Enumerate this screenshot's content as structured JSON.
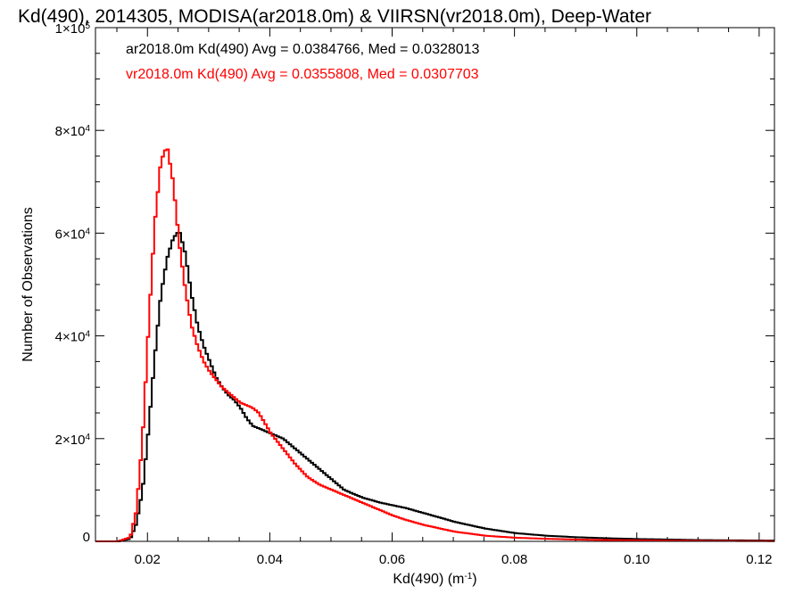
{
  "chart_data": {
    "type": "line",
    "title": "Kd(490), 2014305, MODISA(ar2018.0m) & VIIRSN(vr2018.0m), Deep-Water",
    "xlabel_main": "Kd(490) (m",
    "xlabel_sup": "-1",
    "xlabel_close": ")",
    "ylabel": "Number of Observations",
    "xlim": [
      0.0115,
      0.1225
    ],
    "ylim": [
      0,
      100000
    ],
    "x_ticks": [
      {
        "value": 0.02,
        "label": "0.02"
      },
      {
        "value": 0.04,
        "label": "0.04"
      },
      {
        "value": 0.06,
        "label": "0.06"
      },
      {
        "value": 0.08,
        "label": "0.08"
      },
      {
        "value": 0.1,
        "label": "0.10"
      },
      {
        "value": 0.12,
        "label": "0.12"
      }
    ],
    "y_ticks": [
      {
        "value": 0,
        "mant": "0",
        "exp": ""
      },
      {
        "value": 20000,
        "mant": "2×10",
        "exp": "4"
      },
      {
        "value": 40000,
        "mant": "4×10",
        "exp": "4"
      },
      {
        "value": 60000,
        "mant": "6×10",
        "exp": "4"
      },
      {
        "value": 80000,
        "mant": "8×10",
        "exp": "4"
      },
      {
        "value": 100000,
        "mant": "1×10",
        "exp": "5"
      }
    ],
    "series": [
      {
        "name": "ar2018.0m Kd(490) Avg = 0.0384766, Med = 0.0328013",
        "color": "#000000",
        "x": [
          0.015,
          0.017,
          0.018,
          0.019,
          0.02,
          0.021,
          0.022,
          0.023,
          0.024,
          0.025,
          0.026,
          0.027,
          0.028,
          0.029,
          0.03,
          0.031,
          0.032,
          0.033,
          0.034,
          0.035,
          0.036,
          0.037,
          0.038,
          0.039,
          0.04,
          0.042,
          0.044,
          0.046,
          0.048,
          0.05,
          0.052,
          0.055,
          0.058,
          0.06,
          0.062,
          0.065,
          0.068,
          0.07,
          0.075,
          0.08,
          0.085,
          0.09,
          0.095,
          0.1,
          0.105,
          0.11,
          0.115,
          0.1225
        ],
        "y": [
          0,
          500,
          3500,
          10000,
          22000,
          36000,
          48000,
          55000,
          59000,
          60500,
          56000,
          48000,
          42000,
          38000,
          35000,
          32000,
          30000,
          28500,
          27500,
          26000,
          24000,
          22500,
          22000,
          21500,
          21000,
          20000,
          18000,
          16000,
          14000,
          12000,
          10000,
          8500,
          7500,
          7000,
          6500,
          5500,
          4500,
          3800,
          2500,
          1600,
          1100,
          800,
          600,
          450,
          350,
          250,
          200,
          150
        ]
      },
      {
        "name": "vr2018.0m Kd(490) Avg = 0.0355808, Med = 0.0307703",
        "color": "#ff0000",
        "x": [
          0.015,
          0.017,
          0.018,
          0.019,
          0.02,
          0.021,
          0.022,
          0.023,
          0.024,
          0.025,
          0.026,
          0.027,
          0.028,
          0.029,
          0.03,
          0.031,
          0.032,
          0.033,
          0.034,
          0.035,
          0.036,
          0.037,
          0.038,
          0.039,
          0.04,
          0.042,
          0.044,
          0.046,
          0.048,
          0.05,
          0.052,
          0.055,
          0.058,
          0.06,
          0.062,
          0.065,
          0.068,
          0.07,
          0.075,
          0.08,
          0.085,
          0.09,
          0.095,
          0.1,
          0.105,
          0.11,
          0.115,
          0.1225
        ],
        "y": [
          0,
          800,
          6000,
          20000,
          42000,
          62000,
          74000,
          77000,
          70000,
          58000,
          49000,
          42000,
          38000,
          35000,
          33000,
          31500,
          30000,
          29000,
          28000,
          27000,
          26500,
          26000,
          25000,
          23000,
          21000,
          18000,
          15000,
          12500,
          11000,
          10000,
          9000,
          7500,
          6000,
          5000,
          4200,
          3200,
          2400,
          1900,
          1100,
          700,
          500,
          350,
          250,
          200,
          150,
          100,
          80,
          50
        ]
      }
    ],
    "grid": false
  }
}
